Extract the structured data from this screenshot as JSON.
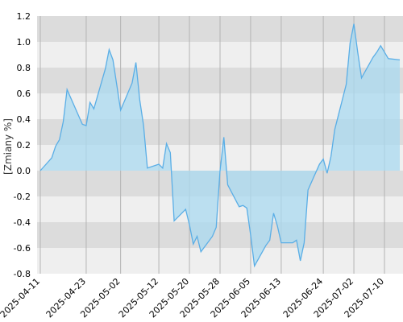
{
  "chart_data": {
    "type": "area",
    "ylabel": "[Zmiany %]",
    "ylim": [
      -0.8,
      1.2
    ],
    "y_ticks": [
      "1.2",
      "1.0",
      "0.8",
      "0.6",
      "0.4",
      "0.2",
      "0.0",
      "-0.2",
      "-0.4",
      "-0.6",
      "-0.8"
    ],
    "x_ticks": [
      "2025-04-11",
      "2025-04-23",
      "2025-05-02",
      "2025-05-12",
      "2025-05-20",
      "2025-05-28",
      "2025-06-05",
      "2025-06-13",
      "2025-06-24",
      "2025-07-02",
      "2025-07-10"
    ],
    "grid": true,
    "colors": {
      "line": "#5aaee6",
      "fill": "#a9d9f0",
      "band_dark": "#dcdcdc",
      "band_light": "#efefef"
    },
    "series": [
      {
        "x": [
          "2025-04-11",
          "2025-04-14",
          "2025-04-15",
          "2025-04-16",
          "2025-04-17",
          "2025-04-18",
          "2025-04-22",
          "2025-04-23",
          "2025-04-24",
          "2025-04-25",
          "2025-04-28",
          "2025-04-29",
          "2025-04-30",
          "2025-05-02",
          "2025-05-05",
          "2025-05-06",
          "2025-05-07",
          "2025-05-08",
          "2025-05-09",
          "2025-05-12",
          "2025-05-13",
          "2025-05-14",
          "2025-05-15",
          "2025-05-16",
          "2025-05-19",
          "2025-05-20",
          "2025-05-21",
          "2025-05-22",
          "2025-05-23",
          "2025-05-26",
          "2025-05-27",
          "2025-05-28",
          "2025-05-29",
          "2025-05-30",
          "2025-06-02",
          "2025-06-03",
          "2025-06-04",
          "2025-06-05",
          "2025-06-06",
          "2025-06-09",
          "2025-06-10",
          "2025-06-11",
          "2025-06-12",
          "2025-06-13",
          "2025-06-16",
          "2025-06-17",
          "2025-06-18",
          "2025-06-19",
          "2025-06-20",
          "2025-06-23",
          "2025-06-24",
          "2025-06-25",
          "2025-06-26",
          "2025-06-27",
          "2025-06-30",
          "2025-07-01",
          "2025-07-02",
          "2025-07-03",
          "2025-07-04",
          "2025-07-07",
          "2025-07-08",
          "2025-07-09",
          "2025-07-10",
          "2025-07-11",
          "2025-07-14"
        ],
        "values": [
          0.0,
          0.1,
          0.19,
          0.24,
          0.38,
          0.63,
          0.36,
          0.35,
          0.53,
          0.48,
          0.79,
          0.94,
          0.86,
          0.47,
          0.68,
          0.84,
          0.55,
          0.35,
          0.02,
          0.05,
          0.02,
          0.21,
          0.14,
          -0.39,
          -0.3,
          -0.42,
          -0.57,
          -0.51,
          -0.63,
          -0.51,
          -0.44,
          0.0,
          0.26,
          -0.11,
          -0.28,
          -0.27,
          -0.29,
          -0.5,
          -0.74,
          -0.58,
          -0.54,
          -0.33,
          -0.43,
          -0.56,
          -0.56,
          -0.54,
          -0.7,
          -0.56,
          -0.15,
          0.05,
          0.09,
          -0.02,
          0.11,
          0.32,
          0.67,
          0.99,
          1.14,
          0.92,
          0.72,
          0.88,
          0.92,
          0.97,
          0.92,
          0.87,
          0.86
        ]
      }
    ]
  }
}
